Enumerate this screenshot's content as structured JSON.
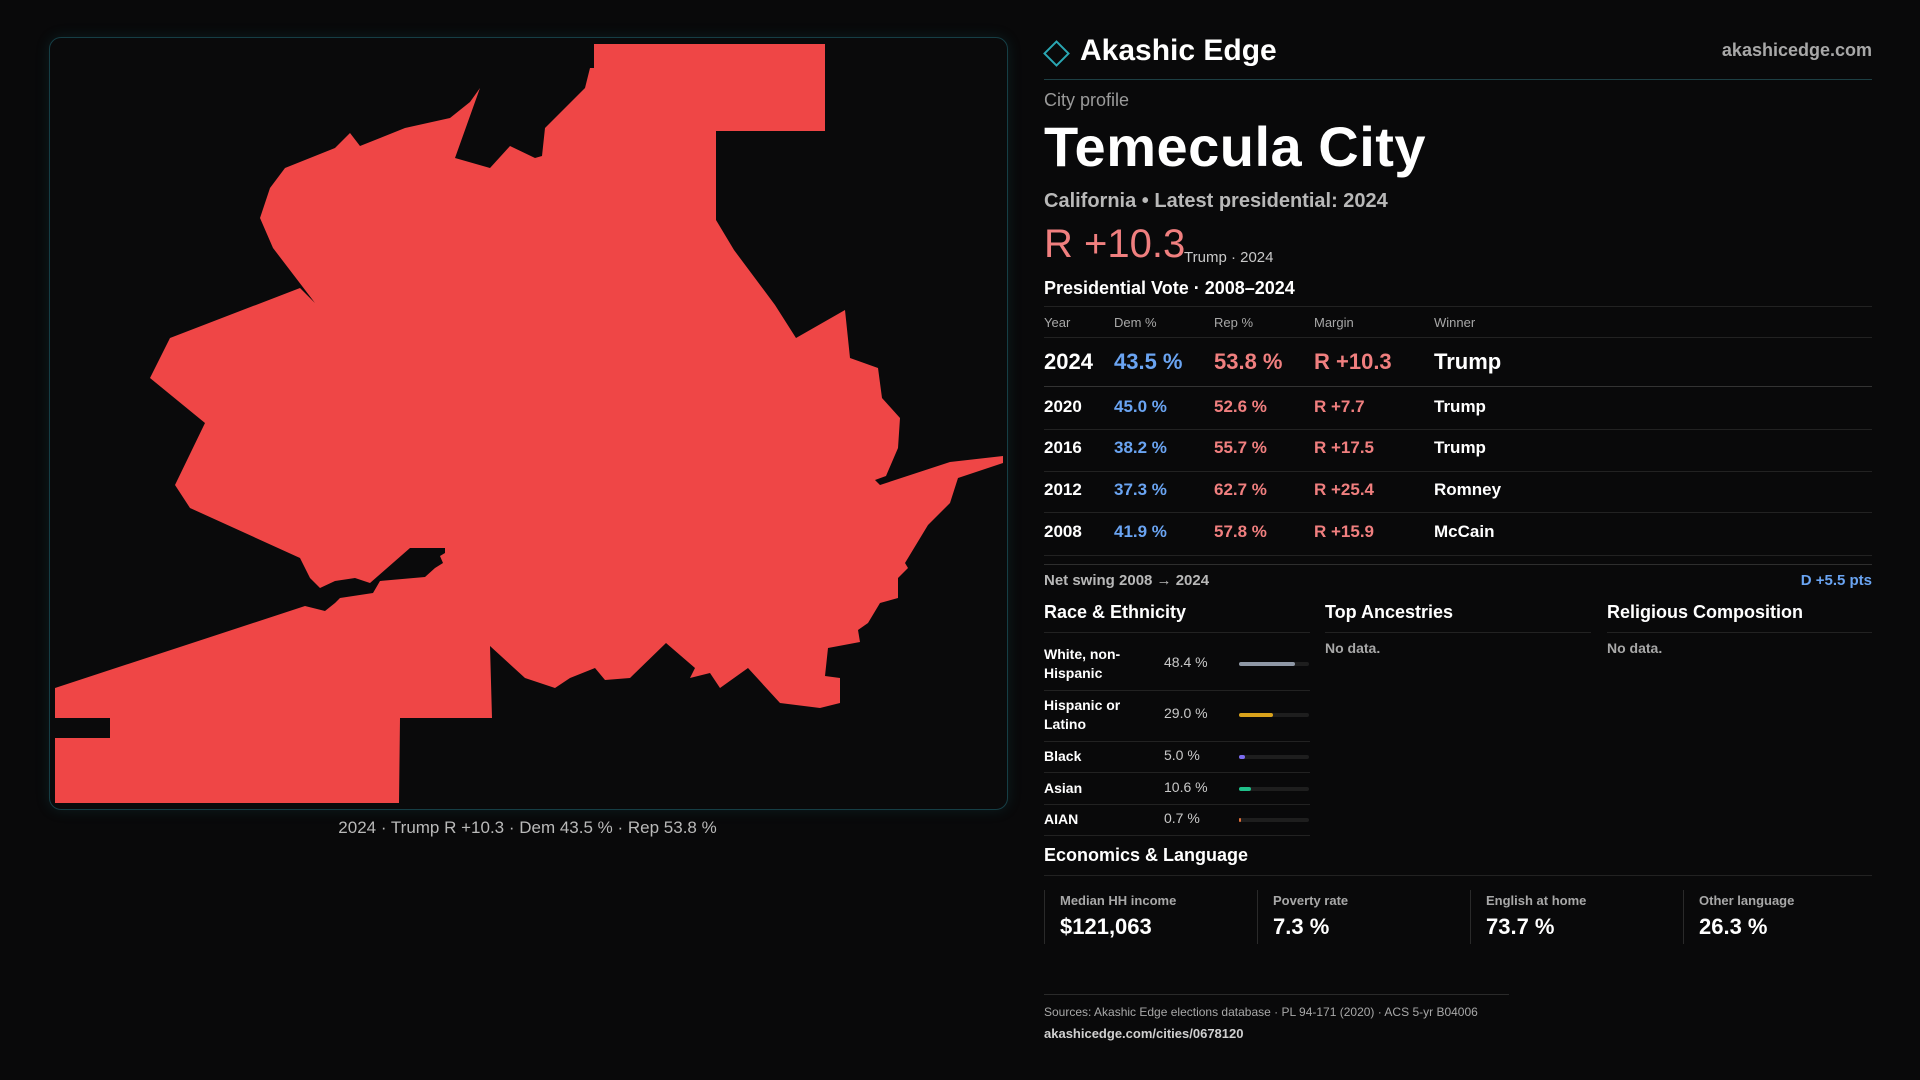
{
  "brand": {
    "name": "Akashic Edge",
    "url": "akashicedge.com",
    "logo_icon": "diamond-icon"
  },
  "map": {
    "fill_color": "#ef4646",
    "caption": "2024 · Trump R +10.3 · Dem 43.5 % · Rep 53.8 %"
  },
  "profile": {
    "kicker": "City profile",
    "title": "Temecula City",
    "subline": "California • Latest presidential: 2024",
    "margin": "R +10.3",
    "margin_note": "Trump · 2024"
  },
  "vote_table": {
    "title": "Presidential Vote · 2008–2024",
    "headers": {
      "year": "Year",
      "dem": "Dem %",
      "rep": "Rep %",
      "margin": "Margin",
      "winner": "Winner"
    },
    "rows": [
      {
        "year": "2024",
        "dem": "43.5 %",
        "rep": "53.8 %",
        "margin": "R +10.3",
        "winner": "Trump"
      },
      {
        "year": "2020",
        "dem": "45.0 %",
        "rep": "52.6 %",
        "margin": "R +7.7",
        "winner": "Trump"
      },
      {
        "year": "2016",
        "dem": "38.2 %",
        "rep": "55.7 %",
        "margin": "R +17.5",
        "winner": "Trump"
      },
      {
        "year": "2012",
        "dem": "37.3 %",
        "rep": "62.7 %",
        "margin": "R +25.4",
        "winner": "Romney"
      },
      {
        "year": "2008",
        "dem": "41.9 %",
        "rep": "57.8 %",
        "margin": "R +15.9",
        "winner": "McCain"
      }
    ],
    "swing_label": "Net swing 2008 → 2024",
    "swing_value": "D +5.5 pts"
  },
  "race": {
    "title": "Race & Ethnicity",
    "rows": [
      {
        "label": "White, non-Hispanic",
        "pct": "48.4 %",
        "share": 0.484,
        "color": "#8f98a6"
      },
      {
        "label": "Hispanic or Latino",
        "pct": "29.0 %",
        "share": 0.29,
        "color": "#d9a21b"
      },
      {
        "label": "Black",
        "pct": "5.0 %",
        "share": 0.05,
        "color": "#7c6cf0"
      },
      {
        "label": "Asian",
        "pct": "10.6 %",
        "share": 0.106,
        "color": "#20c08a"
      },
      {
        "label": "AIAN",
        "pct": "0.7 %",
        "share": 0.007,
        "color": "#e0703a"
      }
    ]
  },
  "ancestries": {
    "title": "Top Ancestries",
    "empty": "No data."
  },
  "religion": {
    "title": "Religious Composition",
    "empty": "No data."
  },
  "economics": {
    "title": "Economics & Language",
    "cells": [
      {
        "label": "Median HH income",
        "value": "$121,063"
      },
      {
        "label": "Poverty rate",
        "value": "7.3 %"
      },
      {
        "label": "English at home",
        "value": "73.7 %"
      },
      {
        "label": "Other language",
        "value": "26.3 %"
      }
    ]
  },
  "footer": {
    "sources": "Sources: Akashic Edge elections database · PL 94-171 (2020) · ACS 5-yr B04006",
    "url": "akashicedge.com/cities/0678120"
  }
}
